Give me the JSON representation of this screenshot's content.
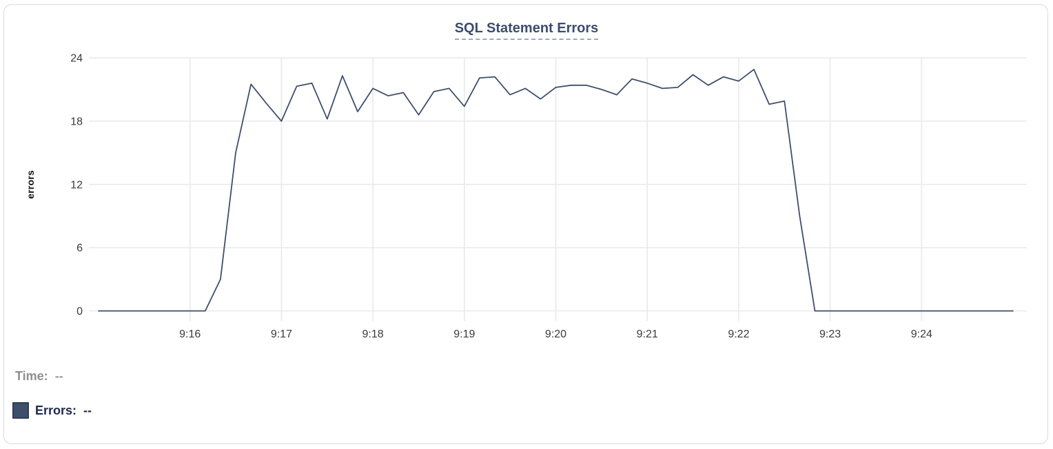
{
  "tooltip": {
    "time_label": "Time:",
    "time_value": "--",
    "errors_label": "Errors:",
    "errors_value": "--",
    "swatch_color": "#3e4f6c"
  },
  "chart_data": {
    "type": "line",
    "title": "SQL Statement Errors",
    "xlabel": "",
    "ylabel": "errors",
    "ylim": [
      0,
      24
    ],
    "y_ticks": [
      0,
      6,
      12,
      18,
      24
    ],
    "x_ticks": [
      {
        "label": "9:16",
        "t": "9:16:00"
      },
      {
        "label": "9:17",
        "t": "9:17:00"
      },
      {
        "label": "9:18",
        "t": "9:18:00"
      },
      {
        "label": "9:19",
        "t": "9:19:00"
      },
      {
        "label": "9:20",
        "t": "9:20:00"
      },
      {
        "label": "9:21",
        "t": "9:21:00"
      },
      {
        "label": "9:22",
        "t": "9:22:00"
      },
      {
        "label": "9:23",
        "t": "9:23:00"
      },
      {
        "label": "9:24",
        "t": "9:24:00"
      }
    ],
    "xlim": [
      "9:15:00",
      "9:25:00"
    ],
    "grid": true,
    "legend_position": "none",
    "line_color": "#3e4e6b",
    "grid_color": "#e9e9e9",
    "tick_text_color": "#3a3a3a",
    "series": [
      {
        "name": "Errors",
        "points": [
          [
            "9:15:00",
            0
          ],
          [
            "9:15:10",
            0
          ],
          [
            "9:15:20",
            0
          ],
          [
            "9:15:30",
            0
          ],
          [
            "9:15:40",
            0
          ],
          [
            "9:15:50",
            0
          ],
          [
            "9:16:00",
            0
          ],
          [
            "9:16:10",
            0
          ],
          [
            "9:16:20",
            3
          ],
          [
            "9:16:30",
            15
          ],
          [
            "9:16:40",
            21.5
          ],
          [
            "9:16:50",
            19.7
          ],
          [
            "9:17:00",
            18
          ],
          [
            "9:17:10",
            21.3
          ],
          [
            "9:17:20",
            21.6
          ],
          [
            "9:17:30",
            18.2
          ],
          [
            "9:17:40",
            22.3
          ],
          [
            "9:17:50",
            18.9
          ],
          [
            "9:18:00",
            21.1
          ],
          [
            "9:18:10",
            20.4
          ],
          [
            "9:18:20",
            20.7
          ],
          [
            "9:18:30",
            18.6
          ],
          [
            "9:18:40",
            20.8
          ],
          [
            "9:18:50",
            21.1
          ],
          [
            "9:19:00",
            19.4
          ],
          [
            "9:19:10",
            22.1
          ],
          [
            "9:19:20",
            22.2
          ],
          [
            "9:19:30",
            20.5
          ],
          [
            "9:19:40",
            21.1
          ],
          [
            "9:19:50",
            20.1
          ],
          [
            "9:20:00",
            21.2
          ],
          [
            "9:20:10",
            21.4
          ],
          [
            "9:20:20",
            21.4
          ],
          [
            "9:20:30",
            21.0
          ],
          [
            "9:20:40",
            20.5
          ],
          [
            "9:20:50",
            22.0
          ],
          [
            "9:21:00",
            21.6
          ],
          [
            "9:21:10",
            21.1
          ],
          [
            "9:21:20",
            21.2
          ],
          [
            "9:21:30",
            22.4
          ],
          [
            "9:21:40",
            21.4
          ],
          [
            "9:21:50",
            22.2
          ],
          [
            "9:22:00",
            21.8
          ],
          [
            "9:22:10",
            22.9
          ],
          [
            "9:22:20",
            19.6
          ],
          [
            "9:22:30",
            19.9
          ],
          [
            "9:22:40",
            9
          ],
          [
            "9:22:50",
            0
          ],
          [
            "9:23:00",
            0
          ],
          [
            "9:23:10",
            0
          ],
          [
            "9:23:20",
            0
          ],
          [
            "9:23:30",
            0
          ],
          [
            "9:23:40",
            0
          ],
          [
            "9:23:50",
            0
          ],
          [
            "9:24:00",
            0
          ],
          [
            "9:24:10",
            0
          ],
          [
            "9:24:20",
            0
          ],
          [
            "9:24:30",
            0
          ],
          [
            "9:24:40",
            0
          ],
          [
            "9:24:50",
            0
          ],
          [
            "9:25:00",
            0
          ]
        ]
      }
    ]
  }
}
